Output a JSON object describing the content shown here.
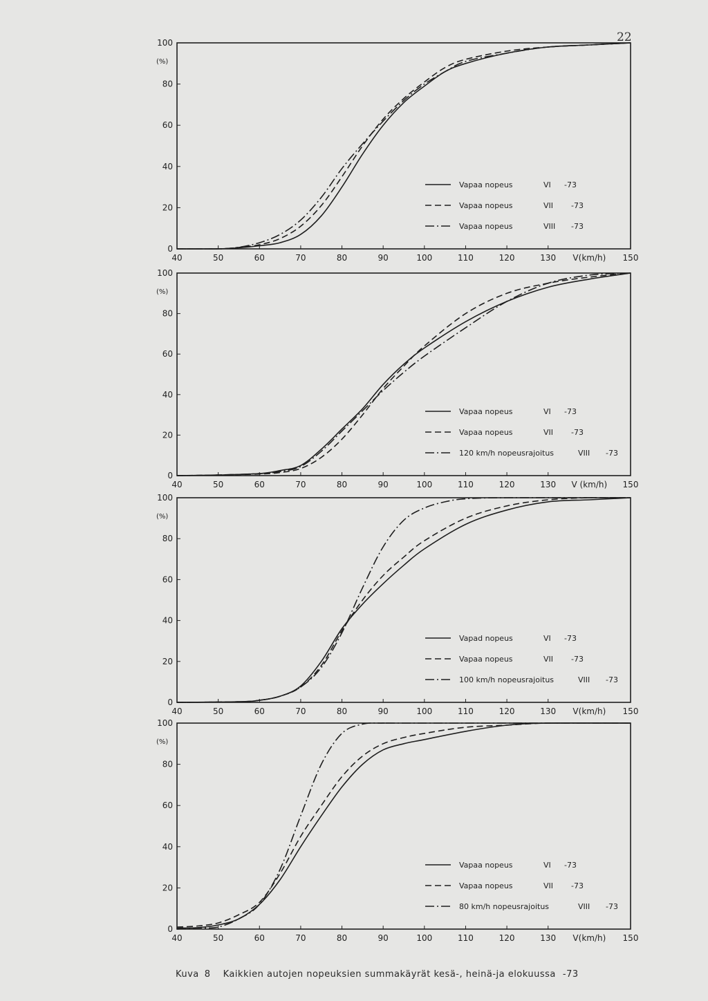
{
  "page_number": "22",
  "caption": {
    "label": "Kuva",
    "number": "8",
    "text": "Kaikkien autojen nopeuksien summakäyrät kesä-, heinä-ja elokuussa",
    "suffix": "-73"
  },
  "colors": {
    "ink": "#1e1e1e",
    "paper": "#e6e6e4"
  },
  "chart_data": [
    {
      "type": "line",
      "ylabel": "(%)",
      "xlabel": "V(km/h)",
      "xlim": [
        40,
        150
      ],
      "ylim": [
        0,
        100
      ],
      "x_ticks": [
        "40",
        "50",
        "60",
        "70",
        "80",
        "90",
        "100",
        "110",
        "120",
        "130",
        "150"
      ],
      "y_ticks": [
        "0",
        "20",
        "40",
        "60",
        "80",
        "100"
      ],
      "grid": false,
      "legend_position": "lower-right",
      "series": [
        {
          "name": "Vapaa nopeus",
          "month": "VI",
          "year": "-73",
          "style": "solid",
          "x": [
            40,
            50,
            55,
            60,
            65,
            70,
            75,
            80,
            85,
            90,
            95,
            100,
            105,
            110,
            120,
            130,
            140,
            150
          ],
          "y": [
            0,
            0,
            0.5,
            1.5,
            3,
            7,
            16,
            30,
            46,
            60,
            71,
            79,
            86,
            90,
            95,
            98,
            99,
            100
          ]
        },
        {
          "name": "Vapaa nopeus",
          "month": "VII",
          "year": "-73",
          "style": "dashed",
          "x": [
            40,
            50,
            55,
            60,
            65,
            70,
            75,
            80,
            85,
            90,
            95,
            100,
            105,
            110,
            120,
            130,
            140,
            150
          ],
          "y": [
            0,
            0,
            0.7,
            2,
            5,
            11,
            21,
            35,
            50,
            63,
            73,
            81,
            88,
            92,
            96,
            98,
            99,
            100
          ]
        },
        {
          "name": "Vapaa nopeus",
          "month": "VIII",
          "year": "-73",
          "style": "dashdot",
          "x": [
            40,
            50,
            55,
            60,
            65,
            70,
            75,
            80,
            85,
            90,
            95,
            100,
            105,
            110,
            120,
            130,
            140,
            150
          ],
          "y": [
            0,
            0,
            0.8,
            3,
            7,
            14,
            25,
            39,
            51,
            62,
            72,
            80,
            86,
            91,
            95,
            98,
            99,
            100
          ]
        }
      ]
    },
    {
      "type": "line",
      "ylabel": "(%)",
      "xlabel": "V (km/h)",
      "xlim": [
        40,
        150
      ],
      "ylim": [
        0,
        100
      ],
      "x_ticks": [
        "40",
        "50",
        "60",
        "70",
        "80",
        "90",
        "100",
        "110",
        "120",
        "130",
        "150"
      ],
      "y_ticks": [
        "0",
        "20",
        "40",
        "60",
        "80",
        "100"
      ],
      "grid": false,
      "legend_position": "lower-right",
      "series": [
        {
          "name": "Vapaa nopeus",
          "month": "VI",
          "year": "-73",
          "style": "solid",
          "x": [
            40,
            50,
            60,
            65,
            70,
            75,
            80,
            85,
            90,
            95,
            100,
            110,
            120,
            130,
            140,
            150
          ],
          "y": [
            0,
            0.3,
            1,
            2.5,
            5,
            13,
            23,
            33,
            45,
            55,
            63,
            76,
            86,
            93,
            97,
            100
          ]
        },
        {
          "name": "Vapaa nopeus",
          "month": "VII",
          "year": "-73",
          "style": "dashed",
          "x": [
            40,
            50,
            60,
            65,
            70,
            75,
            80,
            85,
            90,
            95,
            100,
            110,
            120,
            130,
            140,
            150
          ],
          "y": [
            0,
            0.3,
            0.8,
            1.5,
            3.5,
            9,
            18,
            30,
            43,
            54,
            64,
            80,
            90,
            95,
            98,
            100
          ]
        },
        {
          "name": "120 km/h nopeusrajoitus",
          "month": "VIII",
          "year": "-73",
          "style": "dashdot",
          "x": [
            40,
            50,
            60,
            65,
            70,
            75,
            80,
            85,
            90,
            95,
            100,
            110,
            120,
            130,
            140,
            150
          ],
          "y": [
            0,
            0.3,
            1,
            2,
            4.5,
            12,
            22,
            32,
            42,
            51,
            59,
            73,
            86,
            95,
            99,
            100
          ]
        }
      ]
    },
    {
      "type": "line",
      "ylabel": "(%)",
      "xlabel": "V(km/h)",
      "xlim": [
        40,
        150
      ],
      "ylim": [
        0,
        100
      ],
      "x_ticks": [
        "40",
        "50",
        "60",
        "70",
        "80",
        "90",
        "100",
        "110",
        "120",
        "130",
        "150"
      ],
      "y_ticks": [
        "0",
        "20",
        "40",
        "60",
        "80",
        "100"
      ],
      "grid": false,
      "legend_position": "lower-right",
      "series": [
        {
          "name": "Vapad nopeus",
          "month": "VI",
          "year": "-73",
          "style": "solid",
          "x": [
            40,
            55,
            60,
            65,
            70,
            75,
            80,
            85,
            90,
            95,
            100,
            110,
            120,
            130,
            140,
            150
          ],
          "y": [
            0,
            0.3,
            1,
            3,
            8,
            20,
            36,
            48,
            58,
            67,
            75,
            87,
            94,
            98,
            99,
            100
          ]
        },
        {
          "name": "Vapaa nopeus",
          "month": "VII",
          "year": "-73",
          "style": "dashed",
          "x": [
            40,
            55,
            60,
            65,
            70,
            75,
            80,
            85,
            90,
            95,
            100,
            110,
            120,
            130,
            140,
            150
          ],
          "y": [
            0,
            0.3,
            1,
            3,
            7.5,
            18,
            35,
            50,
            62,
            71,
            79,
            90,
            96,
            99,
            100,
            100
          ]
        },
        {
          "name": "100 km/h nopeusrajoitus",
          "month": "VIII",
          "year": "-73",
          "style": "dashdot",
          "x": [
            40,
            55,
            60,
            65,
            70,
            75,
            80,
            85,
            90,
            95,
            100,
            105,
            110,
            120,
            150
          ],
          "y": [
            0,
            0.3,
            1,
            3,
            7.5,
            17,
            34,
            56,
            76,
            89,
            95,
            98,
            99.5,
            100,
            100
          ]
        }
      ]
    },
    {
      "type": "line",
      "ylabel": "(%)",
      "xlabel": "V(km/h)",
      "xlim": [
        40,
        150
      ],
      "ylim": [
        0,
        100
      ],
      "x_ticks": [
        "40",
        "50",
        "60",
        "70",
        "80",
        "90",
        "100",
        "110",
        "120",
        "130",
        "150"
      ],
      "y_ticks": [
        "0",
        "20",
        "40",
        "60",
        "80",
        "100"
      ],
      "grid": false,
      "legend_position": "lower-right",
      "series": [
        {
          "name": "Vapaa nopeus",
          "month": "VI",
          "year": "-73",
          "style": "solid",
          "x": [
            40,
            45,
            50,
            55,
            60,
            65,
            70,
            75,
            80,
            85,
            90,
            95,
            100,
            110,
            120,
            130,
            150
          ],
          "y": [
            0.5,
            0.7,
            2,
            5,
            12,
            24,
            40,
            55,
            69,
            80,
            87,
            90,
            92,
            96,
            99,
            100,
            100
          ]
        },
        {
          "name": "Vapaa nopeus",
          "month": "VII",
          "year": "-73",
          "style": "dashed",
          "x": [
            40,
            45,
            50,
            55,
            60,
            65,
            70,
            75,
            80,
            85,
            90,
            95,
            100,
            110,
            120,
            130,
            150
          ],
          "y": [
            1,
            1.5,
            3,
            7,
            13,
            27,
            45,
            60,
            74,
            84,
            90,
            93,
            95,
            98,
            99,
            100,
            100
          ]
        },
        {
          "name": "80 km/h nopeusrajoitus",
          "month": "VIII",
          "year": "-73",
          "style": "dashdot",
          "x": [
            40,
            45,
            50,
            55,
            60,
            65,
            70,
            75,
            80,
            85,
            90,
            95,
            150
          ],
          "y": [
            0,
            0.5,
            1,
            5,
            12,
            29,
            55,
            80,
            95,
            99.5,
            100,
            100,
            100
          ]
        }
      ]
    }
  ]
}
